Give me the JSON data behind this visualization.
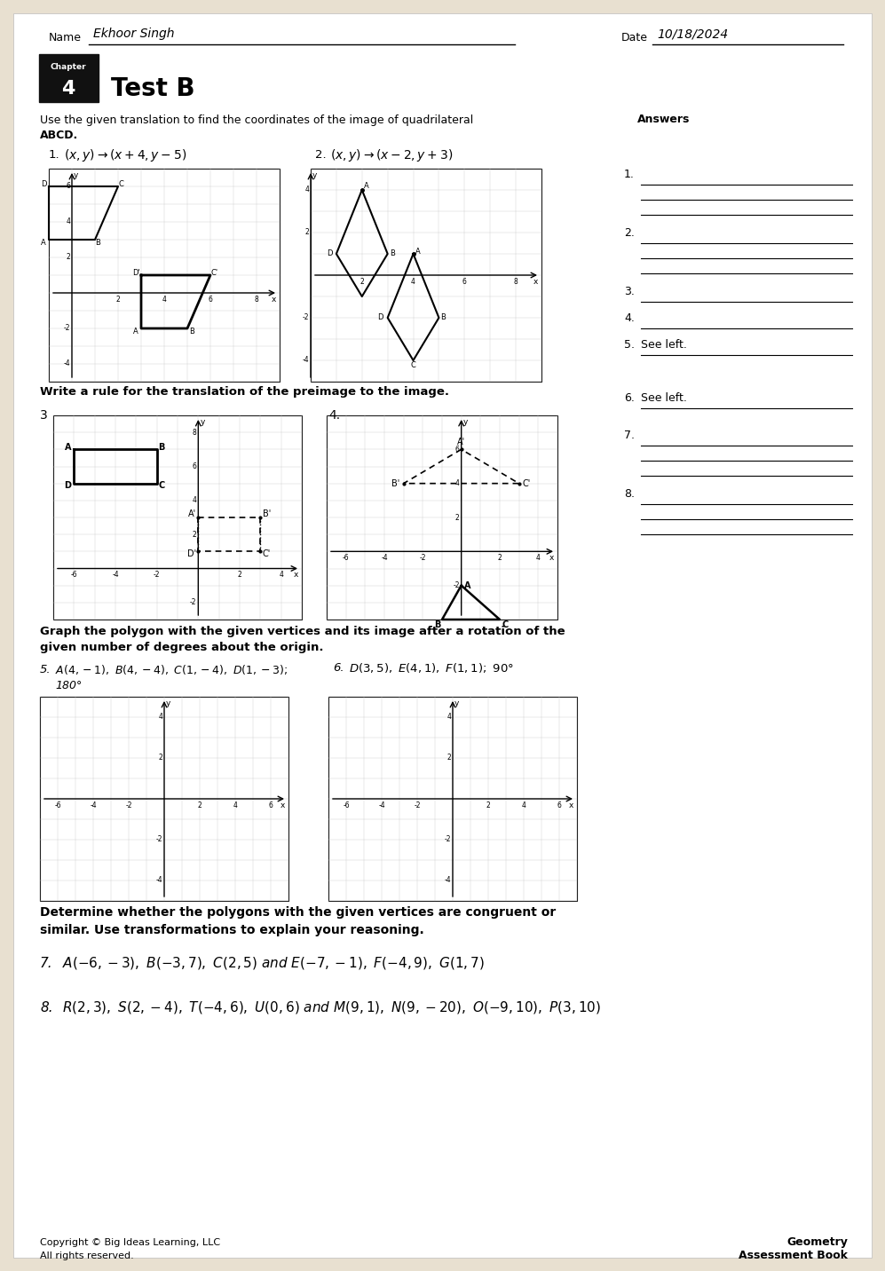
{
  "bg_color": "#e8e0d0",
  "paper_color": "#ffffff",
  "name_text": "Ekhoor Singh",
  "date_text": "10/18/2024",
  "chapter_num": "4",
  "title": "Test B",
  "section1_line1": "Use the given translation to find the coordinates of the image of quadrilateral",
  "section1_line2": "ABCD.",
  "prob1_rule": "(x, y) \\rightarrow (x+4, y-5)",
  "prob2_rule": "(x, y) \\rightarrow (x-2, y+3)",
  "answers_label": "Answers",
  "section2_text": "Write a rule for the translation of the preimage to the image.",
  "section3_line1": "Graph the polygon with the given vertices and its image after a rotation of the",
  "section3_line2": "given number of degrees about the origin.",
  "prob5_text": "A(4,−1), B(4,−4), C(1,−4), D(1,−3);",
  "prob5_deg": "180°",
  "prob6_text": "D(3, 5), E(4, 1), F(1, 1); 90°",
  "section4_line1": "Determine whether the polygons with the given vertices are congruent or",
  "section4_line2": "similar. Use transformations to explain your reasoning.",
  "prob7_text": "A(−6, −3), B(−3, 7), C(2, 5) and E(−7, −1), F(−4, 9), G(1, 7)",
  "prob8_text": "R(2, 3), S(2, −4), T(−4, 6), U(0, 6) and M(9, 1), N(9, −20), O(−9, 10), P(3, 10)",
  "footer_left1": "Copyright © Big Ideas Learning, LLC",
  "footer_left2": "All rights reserved.",
  "footer_right1": "Geometry",
  "footer_right2": "Assessment Book"
}
